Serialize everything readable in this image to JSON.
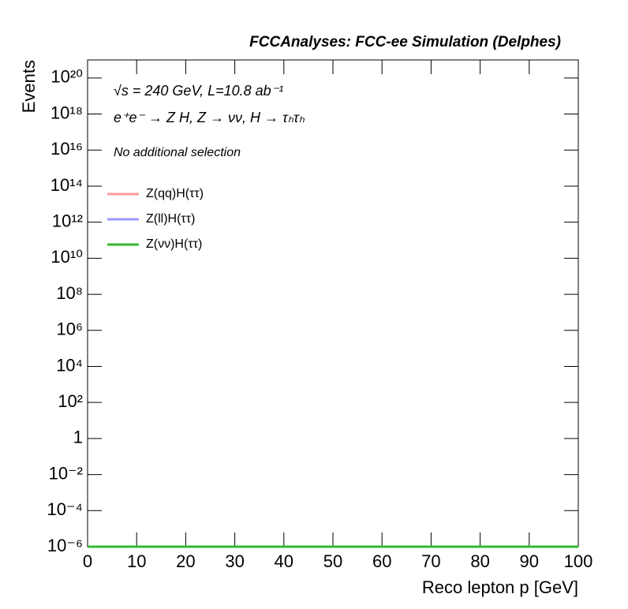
{
  "chart_data": {
    "type": "line",
    "title": "FCCAnalyses: FCC-ee Simulation (Delphes)",
    "annotations": [
      "√s = 240 GeV, L=10.8 ab⁻¹",
      "e⁺e⁻ → Z H, Z → νν, H → τₕτₕ",
      "No additional selection"
    ],
    "x_label": "Reco lepton p [GeV]",
    "y_label": "Events",
    "x": [
      0,
      100
    ],
    "series": [
      {
        "name": "Z(qq)H(ττ)",
        "color": "#ff9999",
        "values": [
          1e-06,
          1e-06
        ]
      },
      {
        "name": "Z(ll)H(ττ)",
        "color": "#9999ff",
        "values": [
          1e-06,
          1e-06
        ]
      },
      {
        "name": "Z(νν)H(ττ)",
        "color": "#33bb33",
        "values": [
          1e-06,
          1e-06
        ]
      }
    ],
    "xlim": [
      0,
      100
    ],
    "xticks": [
      0,
      10,
      20,
      30,
      40,
      50,
      60,
      70,
      80,
      90,
      100
    ],
    "ylim": [
      1e-06,
      1e+21
    ],
    "log_y": true,
    "yticks": [
      {
        "value": 1e-06,
        "label": "10⁻⁶"
      },
      {
        "value": 0.0001,
        "label": "10⁻⁴"
      },
      {
        "value": 0.01,
        "label": "10⁻²"
      },
      1,
      {
        "value": 100.0,
        "label": "10²"
      },
      {
        "value": 10000.0,
        "label": "10⁴"
      },
      {
        "value": 1000000.0,
        "label": "10⁶"
      },
      {
        "value": 100000000.0,
        "label": "10⁸"
      },
      {
        "value": 10000000000.0,
        "label": "10¹⁰"
      },
      {
        "value": 1000000000000.0,
        "label": "10¹²"
      },
      {
        "value": 100000000000000.0,
        "label": "10¹⁴"
      },
      {
        "value": 1e+16,
        "label": "10¹⁶"
      },
      {
        "value": 1e+18,
        "label": "10¹⁸"
      },
      {
        "value": 1e+20,
        "label": "10²⁰"
      }
    ],
    "grid": false
  }
}
